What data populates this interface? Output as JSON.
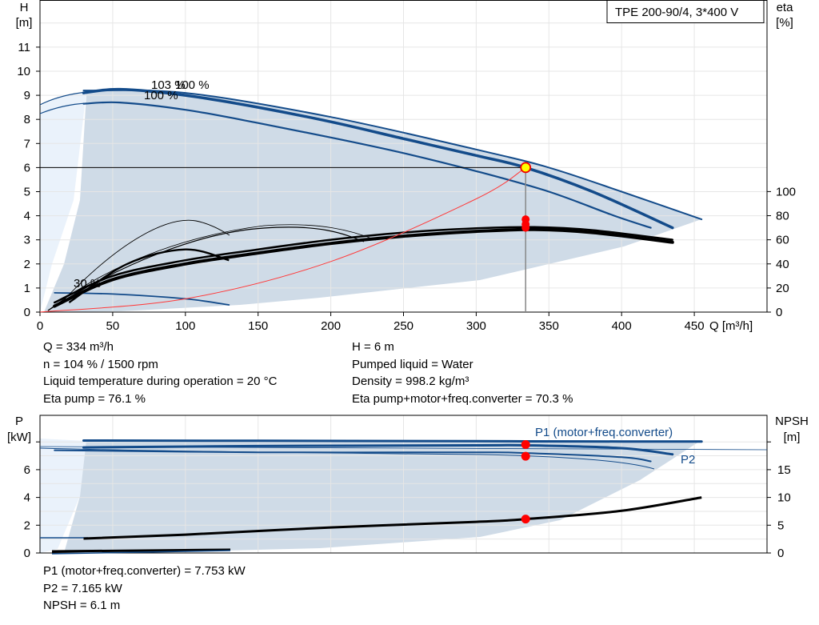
{
  "pump_model": "TPE 200-90/4, 3*400 V",
  "head_chart": {
    "y_label_line1": "H",
    "y_label_line2": "[m]",
    "right_label_line1": "eta",
    "right_label_line2": "[%]",
    "x_label": "Q [m³/h]",
    "x_ticks": [
      "0",
      "50",
      "100",
      "150",
      "200",
      "250",
      "300",
      "350",
      "400",
      "450"
    ],
    "y_ticks": [
      "0",
      "1",
      "2",
      "3",
      "4",
      "5",
      "6",
      "7",
      "8",
      "9",
      "10",
      "11"
    ],
    "eta_ticks": [
      "0",
      "20",
      "40",
      "60",
      "80",
      "100"
    ],
    "curve_labels": {
      "max": "103 %",
      "nominal": "100 %",
      "min": "30 %",
      "speed_extra": "100 %"
    }
  },
  "power_chart": {
    "y_label_line1": "P",
    "y_label_line2": "[kW]",
    "right_label_line1": "NPSH",
    "right_label_line2": "[m]",
    "y_ticks": [
      "0",
      "2",
      "4",
      "6"
    ],
    "npsh_ticks": [
      "0",
      "5",
      "10",
      "15"
    ],
    "p1_label": "P1 (motor+freq.converter)",
    "p2_label": "P2"
  },
  "info_left": [
    "Q = 334 m³/h",
    "n = 104 % / 1500 rpm",
    "Liquid temperature during operation = 20 °C",
    "Eta pump = 76.1 %"
  ],
  "info_right": [
    "H = 6 m",
    "Pumped liquid = Water",
    "Density = 998.2 kg/m³",
    "Eta pump+motor+freq.converter = 70.3 %"
  ],
  "info_bottom": [
    "P1 (motor+freq.converter) = 7.753 kW",
    "P2 = 7.165 kW",
    "NPSH = 6.1 m"
  ],
  "colors": {
    "curve_blue": "#134b8a",
    "area": "#cfdbe7",
    "area_light": "#eaf2fb",
    "system": "#ff3b3b",
    "duty": "#ff0000"
  },
  "chart_data": [
    {
      "type": "line",
      "title": "TPE 200-90/4, 3*400 V",
      "xlabel": "Q [m³/h]",
      "ylabel": "H [m]",
      "y2label": "eta [%]",
      "xlim": [
        0,
        500
      ],
      "ylim": [
        0,
        12
      ],
      "y2lim": [
        0,
        120
      ],
      "series": [
        {
          "name": "103 %",
          "axis": "H",
          "x": [
            30,
            55,
            100,
            150,
            200,
            250,
            300,
            334,
            380,
            435
          ],
          "y": [
            9.1,
            9.25,
            9.0,
            8.5,
            7.9,
            7.2,
            6.5,
            6.0,
            5.0,
            3.5
          ]
        },
        {
          "name": "100 %",
          "axis": "H",
          "x": [
            30,
            55,
            100,
            150,
            200,
            250,
            300,
            350,
            395,
            420
          ],
          "y": [
            8.65,
            8.7,
            8.4,
            7.85,
            7.25,
            6.6,
            5.85,
            5.0,
            4.0,
            3.5
          ]
        },
        {
          "axis": "H",
          "x": [
            30,
            100,
            200,
            300,
            350,
            400,
            455
          ],
          "y": [
            9.2,
            9.1,
            8.1,
            6.75,
            6.0,
            5.0,
            3.85
          ]
        },
        {
          "name": "30 %",
          "axis": "H",
          "x": [
            10,
            50,
            100,
            130
          ],
          "y": [
            0.8,
            0.75,
            0.55,
            0.3
          ]
        },
        {
          "axis": "eta",
          "x": [
            10,
            50,
            100,
            150,
            200,
            250,
            300,
            340,
            380,
            435
          ],
          "y": [
            8,
            30,
            43,
            52,
            60,
            66,
            69.5,
            70.5,
            68,
            60
          ]
        },
        {
          "axis": "eta",
          "x": [
            10,
            50,
            100,
            150,
            200,
            250,
            300,
            340,
            380,
            435
          ],
          "y": [
            5,
            27,
            40,
            49,
            57,
            63,
            67,
            68.5,
            66,
            58
          ]
        },
        {
          "axis": "eta",
          "x": [
            20,
            60,
            100,
            130
          ],
          "y": [
            8,
            40,
            52,
            43
          ]
        },
        {
          "name": "system",
          "axis": "H",
          "x": [
            0,
            100,
            200,
            300,
            334
          ],
          "y": [
            0,
            0.55,
            2.1,
            4.7,
            6.0
          ]
        }
      ],
      "duty_point": {
        "Q": 334,
        "H": 6
      },
      "annotations": [
        "103 %",
        "100 %",
        "30 %"
      ]
    },
    {
      "type": "line",
      "xlabel": "Q [m³/h]",
      "ylabel": "P [kW]",
      "y2label": "NPSH [m]",
      "xlim": [
        0,
        500
      ],
      "ylim": [
        0,
        8
      ],
      "y2lim": [
        0,
        20
      ],
      "series": [
        {
          "name": "P1 (motor+freq.converter)",
          "axis": "P",
          "x": [
            30,
            150,
            300,
            334,
            400,
            455
          ],
          "y": [
            8.1,
            8.08,
            8.05,
            8.04,
            8.03,
            8.03
          ]
        },
        {
          "axis": "P",
          "x": [
            30,
            150,
            300,
            334,
            400,
            435
          ],
          "y": [
            7.6,
            7.7,
            7.75,
            7.75,
            7.55,
            7.1
          ]
        },
        {
          "name": "P2",
          "axis": "P",
          "x": [
            10,
            150,
            300,
            334,
            400,
            420
          ],
          "y": [
            7.4,
            7.25,
            7.25,
            7.2,
            6.9,
            6.6
          ]
        },
        {
          "name": "NPSH",
          "axis": "NPSH",
          "x": [
            30,
            100,
            200,
            300,
            334,
            400,
            455
          ],
          "y": [
            2.6,
            3.3,
            4.6,
            5.6,
            6.1,
            7.6,
            10
          ]
        },
        {
          "axis": "P",
          "x": [
            10,
            130
          ],
          "y": [
            0.1,
            0.2
          ]
        }
      ],
      "duty_point": {
        "Q": 334,
        "P1": 7.753,
        "P2": 7.165,
        "NPSH": 6.1
      }
    }
  ]
}
